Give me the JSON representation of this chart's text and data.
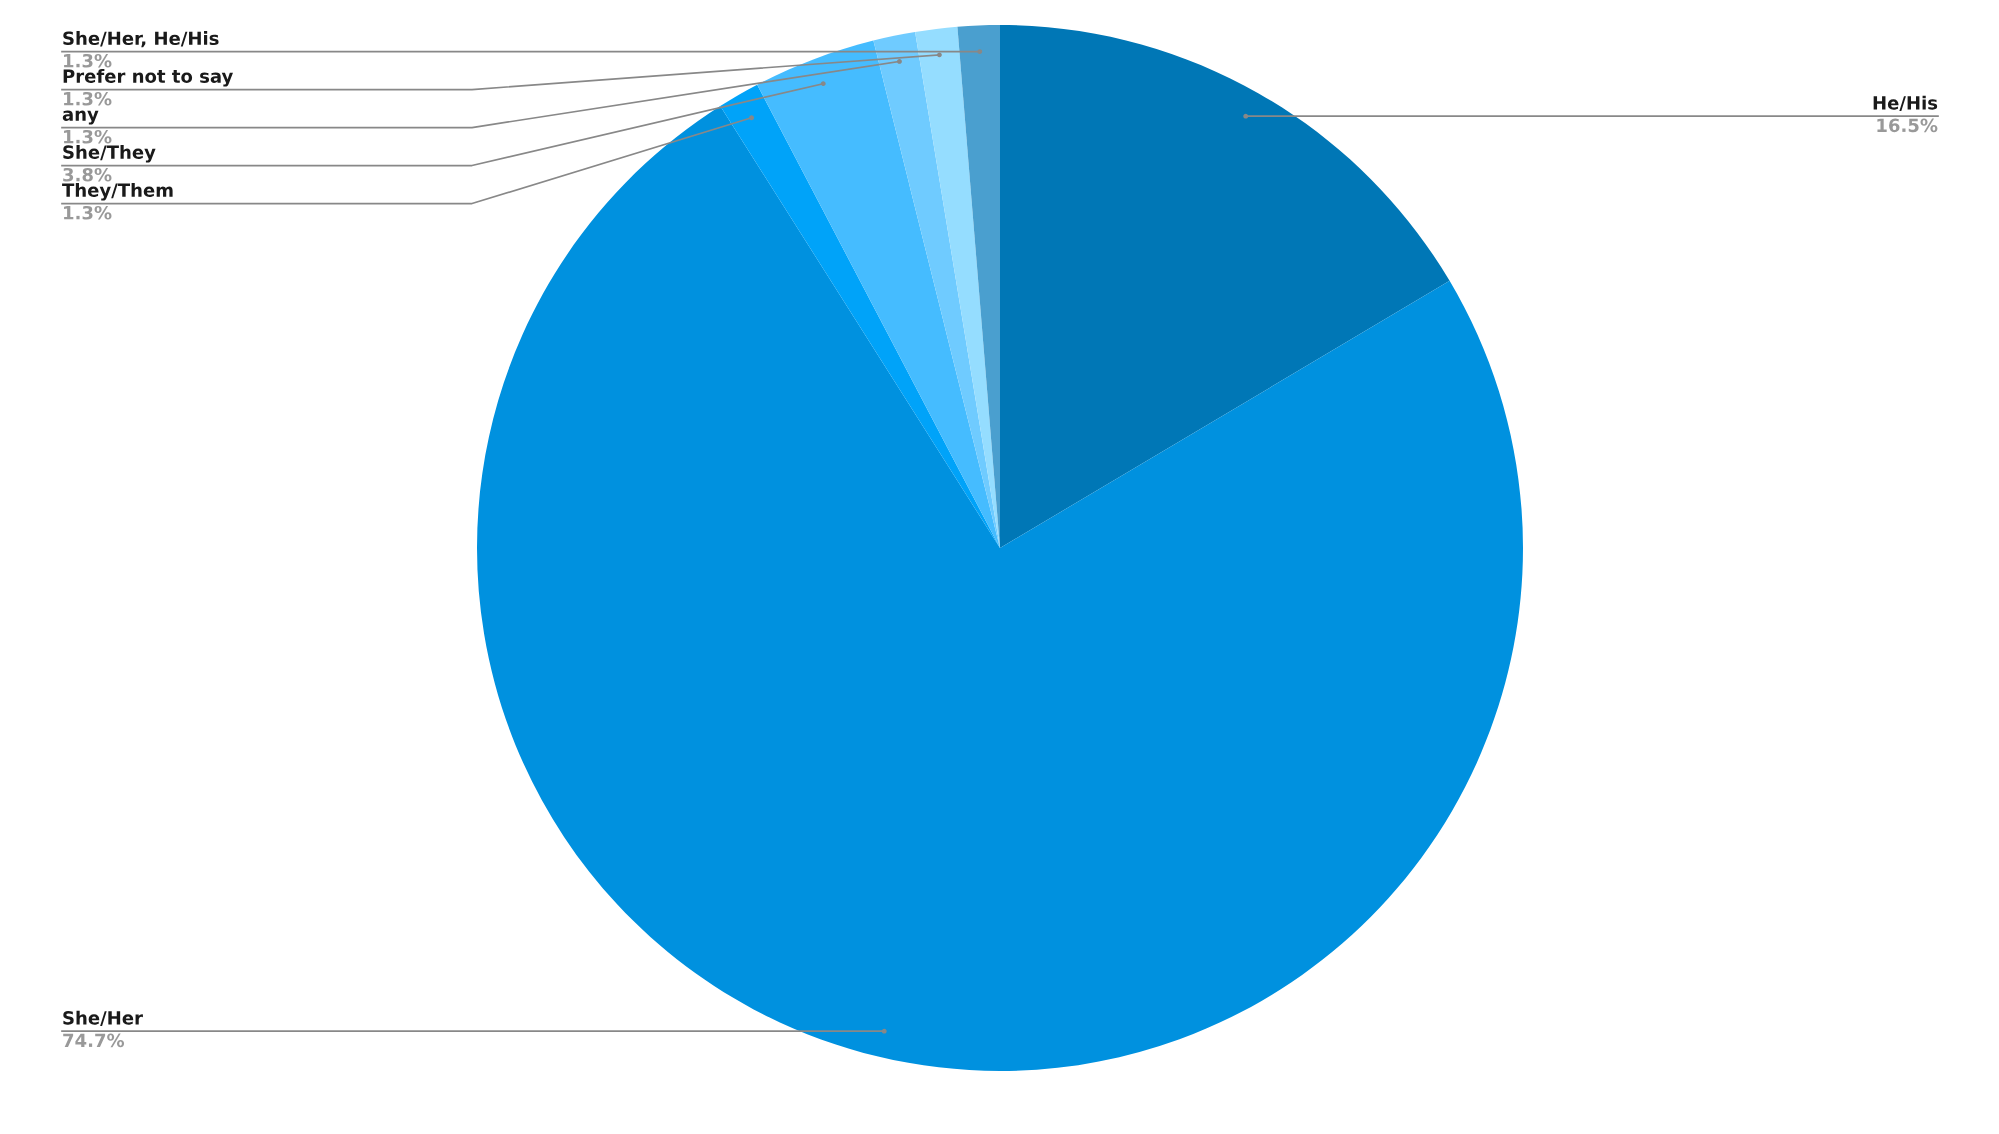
{
  "chart_data": {
    "type": "pie",
    "categories": [
      "He/His",
      "She/Her",
      "They/Them",
      "She/They",
      "any",
      "Prefer not to say",
      "She/Her, He/His"
    ],
    "values": [
      16.5,
      74.7,
      1.3,
      3.8,
      1.3,
      1.3,
      1.3
    ],
    "value_labels": [
      "16.5%",
      "74.7%",
      "1.3%",
      "3.8%",
      "1.3%",
      "1.3%",
      "1.3%"
    ],
    "colors": [
      "#0077b6",
      "#0091df",
      "#00a3f9",
      "#45bcff",
      "#6fcbff",
      "#95ddff",
      "#4a9fcf"
    ]
  }
}
